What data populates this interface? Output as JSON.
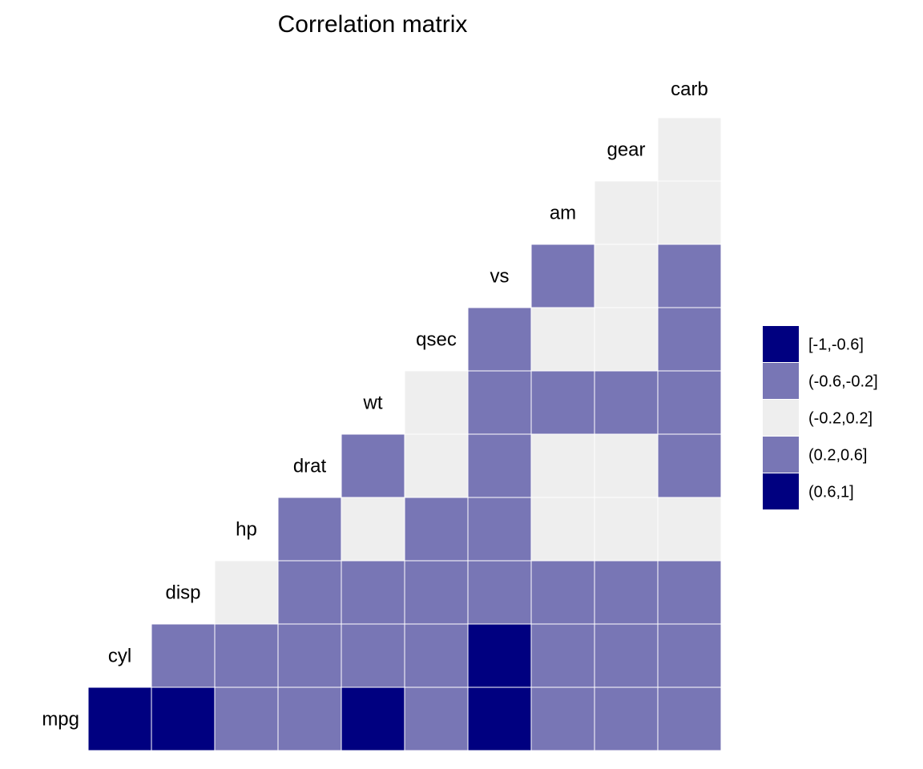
{
  "chart_data": {
    "type": "heatmap",
    "title": "Correlation matrix",
    "variables": [
      "mpg",
      "cyl",
      "disp",
      "hp",
      "drat",
      "wt",
      "qsec",
      "vs",
      "am",
      "gear",
      "carb"
    ],
    "bins": [
      {
        "label": "[-1,-0.6]",
        "color": "#000080"
      },
      {
        "label": "(-0.6,-0.2]",
        "color": "#7876B5"
      },
      {
        "label": "(-0.2,0.2]",
        "color": "#EEEEEE"
      },
      {
        "label": "(0.2,0.6]",
        "color": "#7876B5"
      },
      {
        "label": "(0.6,1]",
        "color": "#000080"
      }
    ],
    "cells": {
      "mpg": {
        "cyl": 0,
        "disp": 0,
        "hp": 1,
        "drat": 1,
        "wt": 0,
        "qsec": 1,
        "vs": 0,
        "am": 1,
        "gear": 1,
        "carb": 1
      },
      "cyl": {
        "disp": 1,
        "hp": 1,
        "drat": 1,
        "wt": 1,
        "qsec": 1,
        "vs": 0,
        "am": 1,
        "gear": 1,
        "carb": 1
      },
      "disp": {
        "hp": 2,
        "drat": 1,
        "wt": 1,
        "qsec": 1,
        "vs": 1,
        "am": 1,
        "gear": 1,
        "carb": 1
      },
      "hp": {
        "drat": 1,
        "wt": 2,
        "qsec": 1,
        "vs": 1,
        "am": 2,
        "gear": 2,
        "carb": 2
      },
      "drat": {
        "wt": 1,
        "qsec": 2,
        "vs": 1,
        "am": 2,
        "gear": 2,
        "carb": 1
      },
      "wt": {
        "qsec": 2,
        "vs": 1,
        "am": 1,
        "gear": 1,
        "carb": 1
      },
      "qsec": {
        "vs": 1,
        "am": 2,
        "gear": 2,
        "carb": 1
      },
      "vs": {
        "am": 1,
        "gear": 2,
        "carb": 1
      },
      "am": {
        "gear": 2,
        "carb": 2
      },
      "gear": {
        "carb": 2
      }
    },
    "legend_placement": "right",
    "grid": false
  }
}
